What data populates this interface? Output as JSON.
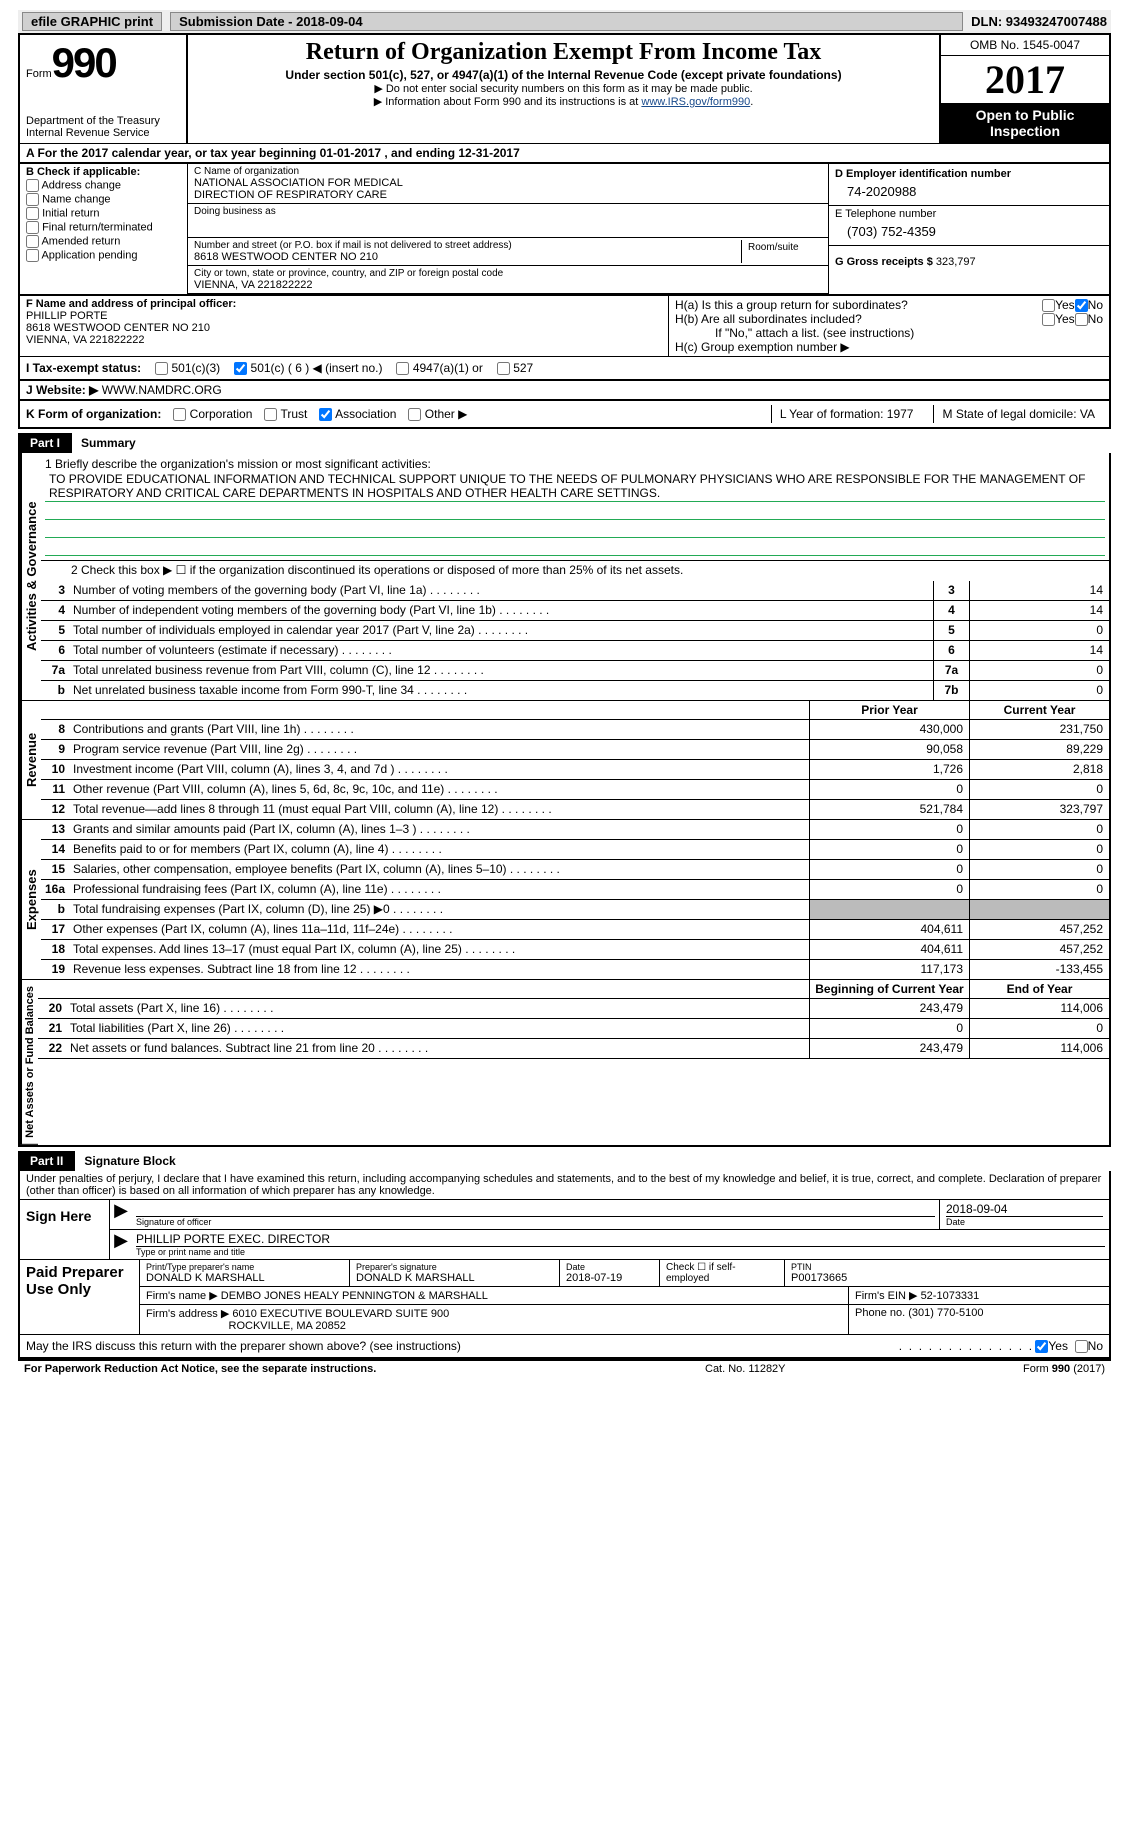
{
  "header": {
    "efile": "efile GRAPHIC print",
    "sub_date": "Submission Date - 2018-09-04",
    "dln": "DLN: 93493247007488"
  },
  "formbox": {
    "form": "Form",
    "num": "990",
    "dept1": "Department of the Treasury",
    "dept2": "Internal Revenue Service"
  },
  "center": {
    "title": "Return of Organization Exempt From Income Tax",
    "sub": "Under section 501(c), 527, or 4947(a)(1) of the Internal Revenue Code (except private foundations)",
    "note1": "▶ Do not enter social security numbers on this form as it may be made public.",
    "note2": "▶ Information about Form 990 and its instructions is at ",
    "link": "www.IRS.gov/form990"
  },
  "yearbox": {
    "omb": "OMB No. 1545-0047",
    "year": "2017",
    "inspect": "Open to Public Inspection"
  },
  "rowA": "A  For the 2017 calendar year, or tax year beginning 01-01-2017    , and ending 12-31-2017",
  "colB": {
    "title": "B Check if applicable:",
    "opts": [
      "Address change",
      "Name change",
      "Initial return",
      "Final return/terminated",
      "Amended return",
      "Application pending"
    ]
  },
  "colC": {
    "name_lbl": "C Name of organization",
    "name1": "NATIONAL ASSOCIATION FOR MEDICAL",
    "name2": "DIRECTION OF RESPIRATORY CARE",
    "dba_lbl": "Doing business as",
    "addr_lbl": "Number and street (or P.O. box if mail is not delivered to street address)",
    "room_lbl": "Room/suite",
    "addr": "8618 WESTWOOD CENTER NO 210",
    "city_lbl": "City or town, state or province, country, and ZIP or foreign postal code",
    "city": "VIENNA, VA  221822222"
  },
  "colD": {
    "ein_lbl": "D Employer identification number",
    "ein": "74-2020988",
    "tel_lbl": "E Telephone number",
    "tel": "(703) 752-4359",
    "gross_lbl": "G Gross receipts $",
    "gross": "323,797"
  },
  "colF": {
    "lbl": "F  Name and address of principal officer:",
    "name": "PHILLIP PORTE",
    "addr": "8618 WESTWOOD CENTER NO 210",
    "city": "VIENNA, VA  221822222"
  },
  "colH": {
    "ha": "H(a)  Is this a group return for subordinates?",
    "hb": "H(b)  Are all subordinates included?",
    "hnote": "If \"No,\" attach a list. (see instructions)",
    "hc": "H(c)  Group exemption number ▶"
  },
  "rowI": {
    "lbl": "I  Tax-exempt status:",
    "c1": "501(c)(3)",
    "c2": "501(c) ( 6 ) ◀ (insert no.)",
    "c3": "4947(a)(1) or",
    "c4": "527"
  },
  "rowJ": {
    "lbl": "J  Website: ▶",
    "val": "WWW.NAMDRC.ORG"
  },
  "rowK": {
    "lbl": "K Form of organization:",
    "opts": [
      "Corporation",
      "Trust",
      "Association",
      "Other ▶"
    ],
    "l": "L Year of formation: 1977",
    "m": "M State of legal domicile: VA"
  },
  "part1": {
    "label": "Part I",
    "title": "Summary"
  },
  "mission_lbl": "1  Briefly describe the organization's mission or most significant activities:",
  "mission": "TO PROVIDE EDUCATIONAL INFORMATION AND TECHNICAL SUPPORT UNIQUE TO THE NEEDS OF PULMONARY PHYSICIANS WHO ARE RESPONSIBLE FOR THE MANAGEMENT OF RESPIRATORY AND CRITICAL CARE DEPARTMENTS IN HOSPITALS AND OTHER HEALTH CARE SETTINGS.",
  "line2": "2  Check this box ▶ ☐   if the organization discontinued its operations or disposed of more than 25% of its net assets.",
  "gov_rows": [
    {
      "n": "3",
      "d": "Number of voting members of the governing body (Part VI, line 1a)",
      "ln": "3",
      "v": "14"
    },
    {
      "n": "4",
      "d": "Number of independent voting members of the governing body (Part VI, line 1b)",
      "ln": "4",
      "v": "14"
    },
    {
      "n": "5",
      "d": "Total number of individuals employed in calendar year 2017 (Part V, line 2a)",
      "ln": "5",
      "v": "0"
    },
    {
      "n": "6",
      "d": "Total number of volunteers (estimate if necessary)",
      "ln": "6",
      "v": "14"
    },
    {
      "n": "7a",
      "d": "Total unrelated business revenue from Part VIII, column (C), line 12",
      "ln": "7a",
      "v": "0"
    },
    {
      "n": "b",
      "d": "Net unrelated business taxable income from Form 990-T, line 34",
      "ln": "7b",
      "v": "0"
    }
  ],
  "rev_head": {
    "c1": "Prior Year",
    "c2": "Current Year"
  },
  "rev_rows": [
    {
      "n": "8",
      "d": "Contributions and grants (Part VIII, line 1h)",
      "v1": "430,000",
      "v2": "231,750"
    },
    {
      "n": "9",
      "d": "Program service revenue (Part VIII, line 2g)",
      "v1": "90,058",
      "v2": "89,229"
    },
    {
      "n": "10",
      "d": "Investment income (Part VIII, column (A), lines 3, 4, and 7d )",
      "v1": "1,726",
      "v2": "2,818"
    },
    {
      "n": "11",
      "d": "Other revenue (Part VIII, column (A), lines 5, 6d, 8c, 9c, 10c, and 11e)",
      "v1": "0",
      "v2": "0"
    },
    {
      "n": "12",
      "d": "Total revenue—add lines 8 through 11 (must equal Part VIII, column (A), line 12)",
      "v1": "521,784",
      "v2": "323,797"
    }
  ],
  "exp_rows": [
    {
      "n": "13",
      "d": "Grants and similar amounts paid (Part IX, column (A), lines 1–3 )",
      "v1": "0",
      "v2": "0"
    },
    {
      "n": "14",
      "d": "Benefits paid to or for members (Part IX, column (A), line 4)",
      "v1": "0",
      "v2": "0"
    },
    {
      "n": "15",
      "d": "Salaries, other compensation, employee benefits (Part IX, column (A), lines 5–10)",
      "v1": "0",
      "v2": "0"
    },
    {
      "n": "16a",
      "d": "Professional fundraising fees (Part IX, column (A), line 11e)",
      "v1": "0",
      "v2": "0"
    },
    {
      "n": "b",
      "d": "Total fundraising expenses (Part IX, column (D), line 25) ▶0",
      "v1": "",
      "v2": "",
      "grey": true
    },
    {
      "n": "17",
      "d": "Other expenses (Part IX, column (A), lines 11a–11d, 11f–24e)",
      "v1": "404,611",
      "v2": "457,252"
    },
    {
      "n": "18",
      "d": "Total expenses. Add lines 13–17 (must equal Part IX, column (A), line 25)",
      "v1": "404,611",
      "v2": "457,252"
    },
    {
      "n": "19",
      "d": "Revenue less expenses. Subtract line 18 from line 12",
      "v1": "117,173",
      "v2": "-133,455"
    }
  ],
  "na_head": {
    "c1": "Beginning of Current Year",
    "c2": "End of Year"
  },
  "na_rows": [
    {
      "n": "20",
      "d": "Total assets (Part X, line 16)",
      "v1": "243,479",
      "v2": "114,006"
    },
    {
      "n": "21",
      "d": "Total liabilities (Part X, line 26)",
      "v1": "0",
      "v2": "0"
    },
    {
      "n": "22",
      "d": "Net assets or fund balances. Subtract line 21 from line 20",
      "v1": "243,479",
      "v2": "114,006"
    }
  ],
  "vtabs": {
    "gov": "Activities & Governance",
    "rev": "Revenue",
    "exp": "Expenses",
    "na": "Net Assets or Fund Balances"
  },
  "part2": {
    "label": "Part II",
    "title": "Signature Block"
  },
  "decl": "Under penalties of perjury, I declare that I have examined this return, including accompanying schedules and statements, and to the best of my knowledge and belief, it is true, correct, and complete. Declaration of preparer (other than officer) is based on all information of which preparer has any knowledge.",
  "sign": {
    "side": "Sign Here",
    "sig_lbl": "Signature of officer",
    "date": "2018-09-04",
    "date_lbl": "Date",
    "name": "PHILLIP PORTE EXEC. DIRECTOR",
    "name_lbl": "Type or print name and title"
  },
  "prep": {
    "side": "Paid Preparer Use Only",
    "pname_lbl": "Print/Type preparer's name",
    "pname": "DONALD K MARSHALL",
    "psig_lbl": "Preparer's signature",
    "psig": "DONALD K MARSHALL",
    "pdate_lbl": "Date",
    "pdate": "2018-07-19",
    "pcheck": "Check ☐ if self-employed",
    "ptin_lbl": "PTIN",
    "ptin": "P00173665",
    "firm_lbl": "Firm's name     ▶",
    "firm": "DEMBO JONES HEALY PENNINGTON & MARSHALL",
    "ein_lbl": "Firm's EIN ▶",
    "ein": "52-1073331",
    "addr_lbl": "Firm's address ▶",
    "addr1": "6010 EXECUTIVE BOULEVARD SUITE 900",
    "addr2": "ROCKVILLE, MA  20852",
    "phone_lbl": "Phone no.",
    "phone": "(301) 770-5100"
  },
  "discuss": "May the IRS discuss this return with the preparer shown above? (see instructions)",
  "footer": {
    "pra": "For Paperwork Reduction Act Notice, see the separate instructions.",
    "cat": "Cat. No. 11282Y",
    "form": "Form 990 (2017)"
  }
}
